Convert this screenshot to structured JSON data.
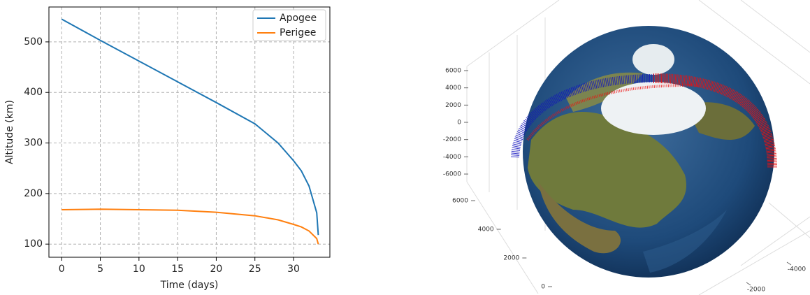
{
  "chart_data": [
    {
      "type": "line",
      "xlabel": "Time (days)",
      "ylabel": "Altitude (km)",
      "x": [
        0,
        5,
        10,
        15,
        20,
        25,
        28,
        30,
        31,
        32,
        33,
        33.2
      ],
      "series": [
        {
          "name": "Apogee",
          "color": "#1f77b4",
          "values": [
            545,
            503,
            462,
            421,
            380,
            338,
            300,
            265,
            245,
            215,
            162,
            118
          ]
        },
        {
          "name": "Perigee",
          "color": "#ff7f0e",
          "values": [
            168,
            169,
            168,
            167,
            163,
            156,
            148,
            139,
            134,
            126,
            111,
            100
          ]
        }
      ],
      "xlim": [
        -1.65,
        34.7
      ],
      "ylim": [
        74,
        569
      ],
      "xticks": [
        0,
        5,
        10,
        15,
        20,
        25,
        30
      ],
      "yticks": [
        100,
        200,
        300,
        400,
        500
      ],
      "grid": true,
      "legend": "upper right"
    },
    {
      "type": "globe3d",
      "zlim": [
        -6000,
        6000
      ],
      "zticks": [
        6000,
        4000,
        2000,
        0,
        -2000,
        -4000,
        -6000
      ],
      "xlim": [
        6000,
        0
      ],
      "xticks": [
        6000,
        4000,
        2000,
        0
      ],
      "ylim": [
        -4000,
        -2000
      ],
      "yticks": [
        -4000,
        -2000
      ],
      "colors": [
        "#1010c0",
        "#ee1010"
      ]
    }
  ]
}
